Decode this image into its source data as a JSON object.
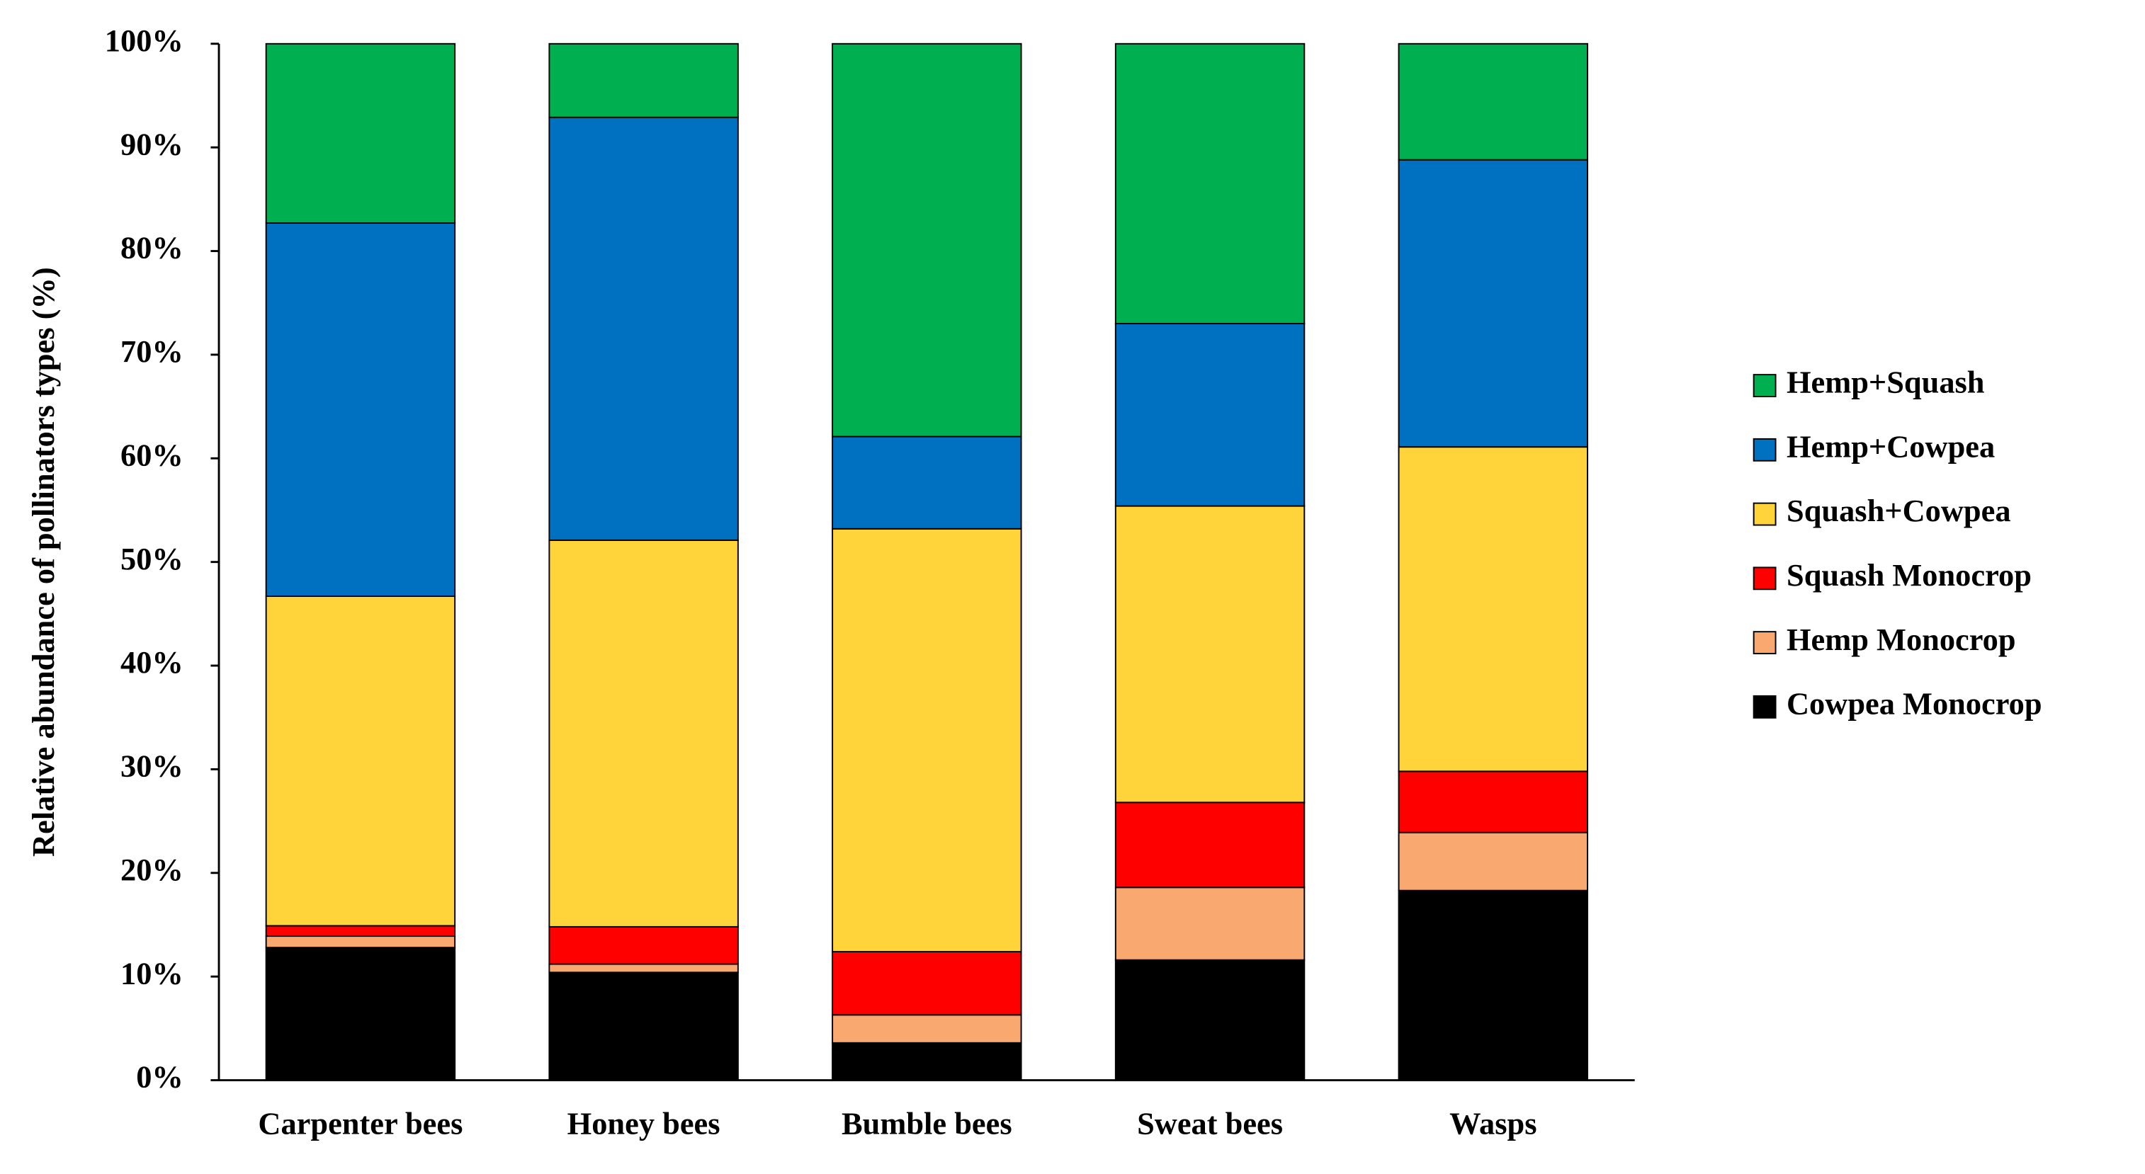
{
  "chart_data": {
    "type": "stacked_bar",
    "y_label": "Relative abundance of pollinators types (%)",
    "categories": [
      "Carpenter bees",
      "Honey bees",
      "Bumble bees",
      "Sweat bees",
      "Wasps"
    ],
    "series": [
      {
        "name": "Cowpea Monocrop",
        "color": "#000000",
        "values": [
          12.8,
          10.4,
          3.6,
          11.6,
          18.3
        ]
      },
      {
        "name": "Hemp Monocrop",
        "color": "#f9a870",
        "values": [
          1.1,
          0.8,
          2.7,
          7.0,
          5.6
        ]
      },
      {
        "name": "Squash Monocrop",
        "color": "#ff0000",
        "values": [
          1.0,
          3.6,
          6.1,
          8.2,
          5.9
        ]
      },
      {
        "name": "Squash+Cowpea",
        "color": "#ffd43b",
        "values": [
          31.8,
          37.3,
          40.8,
          28.6,
          31.3
        ]
      },
      {
        "name": "Hemp+Cowpea",
        "color": "#0070c0",
        "values": [
          36.0,
          40.8,
          8.9,
          17.6,
          27.7
        ]
      },
      {
        "name": "Hemp+Squash",
        "color": "#00b050",
        "values": [
          17.3,
          7.1,
          37.9,
          27.0,
          11.2
        ]
      }
    ],
    "ylim": [
      0,
      100
    ],
    "yticks": [
      {
        "value": 0,
        "label": "0%"
      },
      {
        "value": 10,
        "label": "10%"
      },
      {
        "value": 20,
        "label": "20%"
      },
      {
        "value": 30,
        "label": "30%"
      },
      {
        "value": 40,
        "label": "40%"
      },
      {
        "value": 50,
        "label": "50%"
      },
      {
        "value": 60,
        "label": "60%"
      },
      {
        "value": 70,
        "label": "70%"
      },
      {
        "value": 80,
        "label": "80%"
      },
      {
        "value": 90,
        "label": "90%"
      },
      {
        "value": 100,
        "label": "100%"
      }
    ],
    "legend": "right"
  }
}
